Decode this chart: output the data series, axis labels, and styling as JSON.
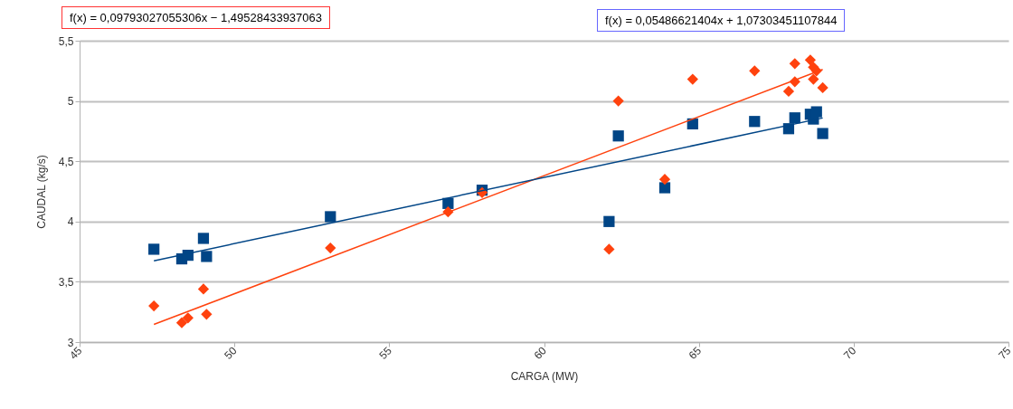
{
  "chart_data": {
    "type": "scatter",
    "xlabel": "CARGA (MW)",
    "ylabel": "CAUDAL (kg/s)",
    "xlim": [
      45,
      75
    ],
    "xticks": [
      45,
      50,
      55,
      60,
      65,
      70,
      75
    ],
    "ylim": [
      3,
      5.5
    ],
    "yticks": [
      3,
      {
        "value": 3.5,
        "label": "3,5"
      },
      4,
      {
        "value": 4.5,
        "label": "4,5"
      },
      5,
      {
        "value": 5.5,
        "label": "5,5"
      }
    ],
    "grid": "y",
    "annotations": [
      "f(x) = 0,09793027055306x − 1,49528433937063",
      "f(x) = 0,05486621404x + 1,07303451107844"
    ],
    "series": [
      {
        "marker": "square",
        "color": "#004586",
        "x": [
          47.4,
          48.3,
          48.5,
          49.0,
          49.1,
          53.1,
          56.9,
          58.0,
          62.1,
          62.4,
          63.9,
          64.8,
          66.8,
          67.9,
          68.1,
          68.6,
          68.7,
          68.8,
          69.0
        ],
        "values": [
          3.77,
          3.69,
          3.72,
          3.86,
          3.71,
          4.04,
          4.15,
          4.26,
          4.0,
          4.71,
          4.28,
          4.81,
          4.83,
          4.77,
          4.86,
          4.89,
          4.85,
          4.91,
          4.73
        ]
      },
      {
        "marker": "diamond",
        "color": "#ff420e",
        "x": [
          47.4,
          48.3,
          48.5,
          49.0,
          49.1,
          53.1,
          56.9,
          58.0,
          62.1,
          62.4,
          63.9,
          64.8,
          66.8,
          67.9,
          68.1,
          68.1,
          68.6,
          68.7,
          68.7,
          68.8,
          69.0
        ],
        "values": [
          3.3,
          3.16,
          3.2,
          3.44,
          3.23,
          3.78,
          4.08,
          4.24,
          3.77,
          5.0,
          4.35,
          5.18,
          5.25,
          5.08,
          5.31,
          5.16,
          5.34,
          5.28,
          5.18,
          5.25,
          5.11
        ]
      },
      {
        "type": "line",
        "marker": "none",
        "color": "#ff420e",
        "x": [
          47.4,
          69.0
        ],
        "values": [
          3.146,
          5.262
        ]
      },
      {
        "type": "line",
        "marker": "none",
        "color": "#004586",
        "x": [
          47.4,
          69.0
        ],
        "values": [
          3.674,
          4.859
        ]
      }
    ]
  }
}
